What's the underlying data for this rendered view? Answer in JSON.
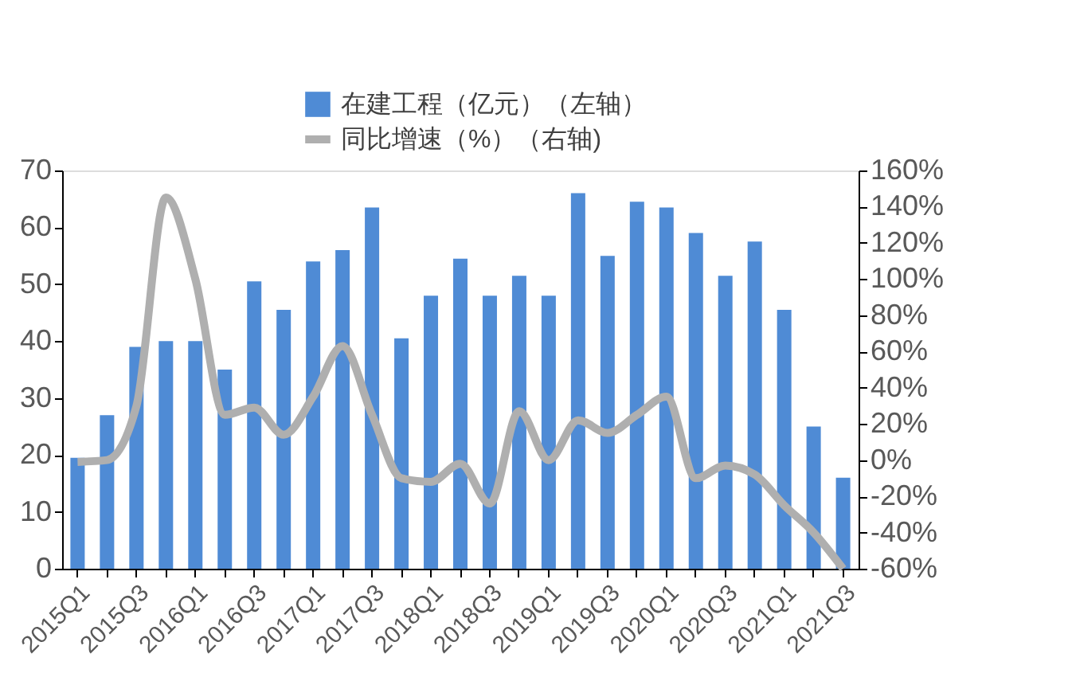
{
  "chart_data": {
    "type": "bar",
    "categories": [
      "2015Q1",
      null,
      "2015Q3",
      null,
      "2016Q1",
      null,
      "2016Q3",
      null,
      "2017Q1",
      null,
      "2017Q3",
      null,
      "2018Q1",
      null,
      "2018Q3",
      null,
      "2019Q1",
      null,
      "2019Q3",
      null,
      "2020Q1",
      null,
      "2020Q3",
      null,
      "2021Q1",
      null,
      "2021Q3"
    ],
    "series": [
      {
        "name": "在建工程（亿元）（左轴）",
        "color": "#4f8bd5",
        "values": [
          19.5,
          27,
          39,
          40,
          40,
          35,
          50.5,
          45.5,
          54,
          56,
          63.5,
          40.5,
          48,
          54.5,
          48,
          51.5,
          48,
          66,
          55,
          64.5,
          63.5,
          59,
          51.5,
          57.5,
          45.5,
          25,
          16
        ]
      },
      {
        "name": "同比增速（%）（右轴)",
        "type": "line",
        "axis": "y2",
        "color": "#afafaf",
        "values": [
          -1,
          0,
          30,
          145,
          100,
          25,
          29,
          14,
          35,
          63,
          25,
          -10,
          -12,
          -2,
          -24,
          27,
          0,
          22,
          15,
          25,
          35,
          -10,
          -3,
          -8,
          -25,
          -40,
          -60
        ]
      }
    ],
    "ylim": [
      0,
      70
    ],
    "yticks": [
      0,
      10,
      20,
      30,
      40,
      50,
      60,
      70
    ],
    "y2lim": [
      -60,
      160
    ],
    "y2ticks": [
      {
        "value": -60,
        "label": "-60%"
      },
      {
        "value": -40,
        "label": "-40%"
      },
      {
        "value": -20,
        "label": "-20%"
      },
      {
        "value": 0,
        "label": "0%"
      },
      {
        "value": 20,
        "label": "20%"
      },
      {
        "value": 40,
        "label": "40%"
      },
      {
        "value": 60,
        "label": "60%"
      },
      {
        "value": 80,
        "label": "80%"
      },
      {
        "value": 100,
        "label": "100%"
      },
      {
        "value": 120,
        "label": "120%"
      },
      {
        "value": 140,
        "label": "140%"
      },
      {
        "value": 160,
        "label": "160%"
      }
    ],
    "legend": "top",
    "grid": false
  }
}
